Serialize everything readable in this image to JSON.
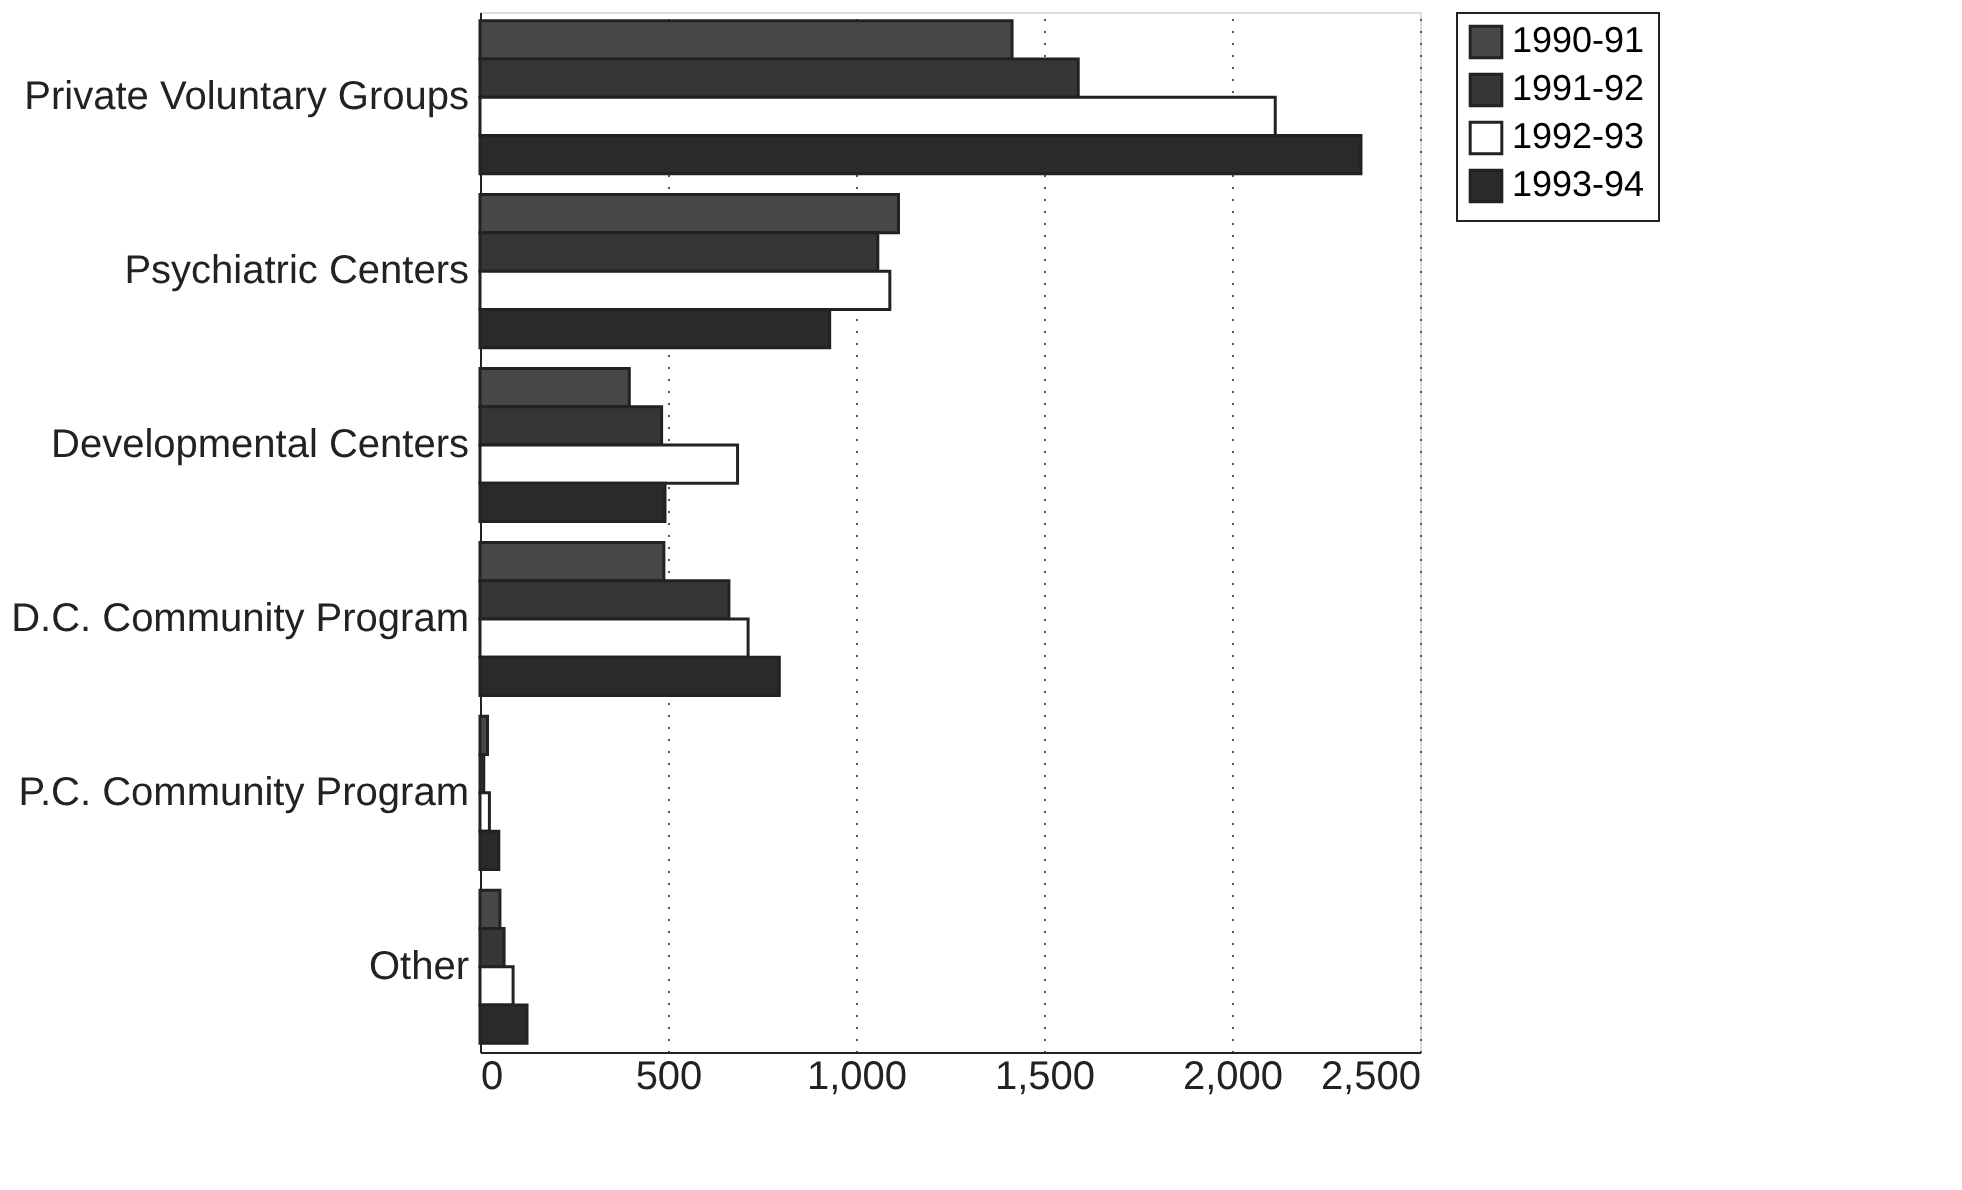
{
  "chart_data": {
    "type": "bar",
    "orientation": "horizontal",
    "categories": [
      "Private Voluntary Groups",
      "Psychiatric Centers",
      "Developmental Centers",
      "D.C. Community Program",
      "P.C. Community Program",
      "Other"
    ],
    "series": [
      {
        "name": "1990-91",
        "color": "#484848",
        "values": [
          1415,
          1113,
          397,
          489,
          20,
          53
        ]
      },
      {
        "name": "1991-92",
        "color": "#363636",
        "values": [
          1591,
          1058,
          483,
          662,
          10,
          64
        ]
      },
      {
        "name": "1992-93",
        "color": "#ffffff",
        "values": [
          2115,
          1090,
          685,
          713,
          25,
          88
        ]
      },
      {
        "name": "1993-94",
        "color": "#2a2a2a",
        "values": [
          2343,
          930,
          492,
          796,
          50,
          125
        ]
      }
    ],
    "xlim": [
      0,
      2500
    ],
    "xticks": [
      0,
      500,
      {
        "value": 1000,
        "label": "1,000"
      },
      {
        "value": 1500,
        "label": "1,500"
      },
      {
        "value": 2000,
        "label": "2,000"
      },
      {
        "value": 2500,
        "label": "2,500"
      }
    ],
    "grid": "x",
    "legend": "right"
  }
}
